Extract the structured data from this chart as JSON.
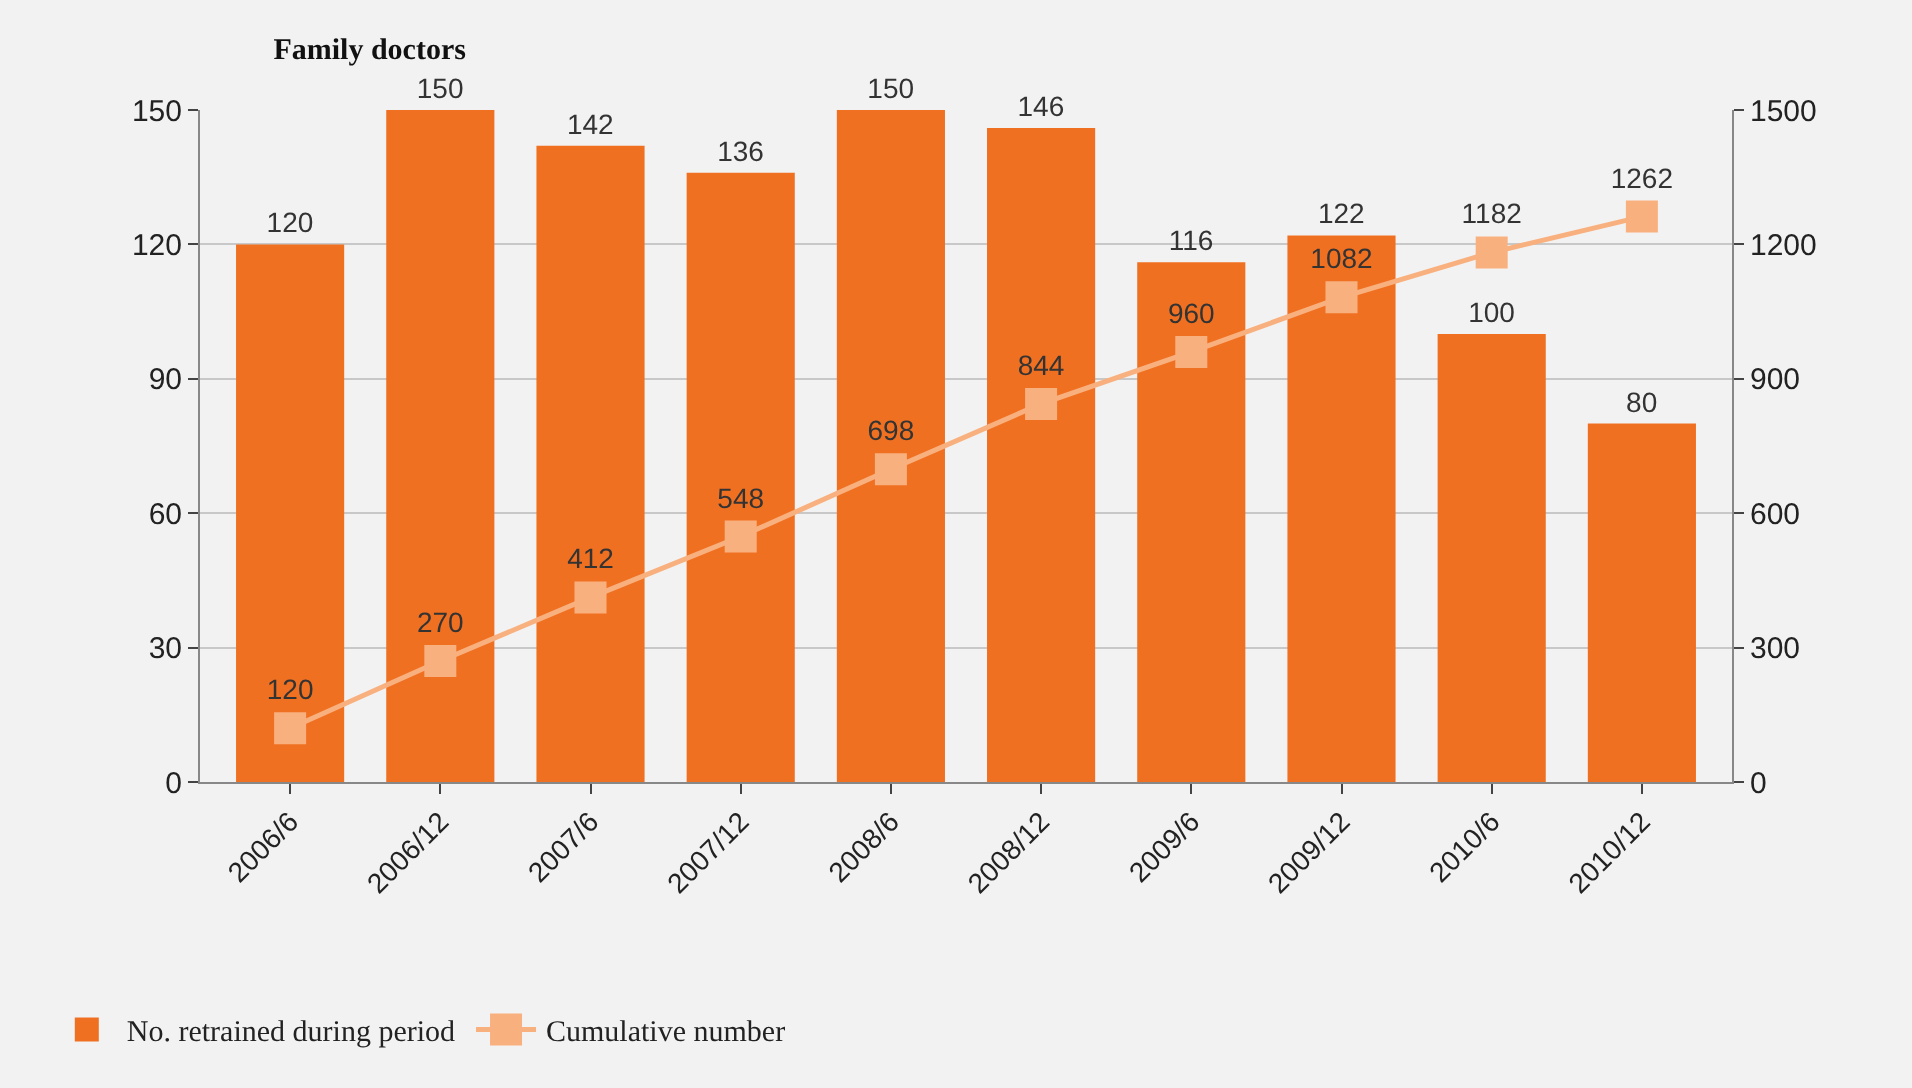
{
  "chart_data": {
    "type": "bar",
    "title": "Family doctors",
    "categories": [
      "2006/6",
      "2006/12",
      "2007/6",
      "2007/12",
      "2008/6",
      "2008/12",
      "2009/6",
      "2009/12",
      "2010/6",
      "2010/12"
    ],
    "series": [
      {
        "name": "No. retrained during period",
        "color": "#f07022",
        "values": [
          120,
          150,
          142,
          136,
          150,
          146,
          116,
          122,
          100,
          80
        ]
      },
      {
        "name": "Cumulative number",
        "type": "line",
        "axis": "y2",
        "color": "#f9b07f",
        "marker": "square",
        "values": [
          120,
          270,
          412,
          548,
          698,
          844,
          960,
          1082,
          1182,
          1262
        ]
      }
    ],
    "ylim": [
      0,
      150
    ],
    "yticks": [
      0,
      30,
      60,
      90,
      120,
      150
    ],
    "y2lim": [
      0,
      1500
    ],
    "y2ticks": [
      0,
      300,
      600,
      900,
      1200,
      1500
    ],
    "grid": "y",
    "legend": "bottom left",
    "data_labels": true
  }
}
